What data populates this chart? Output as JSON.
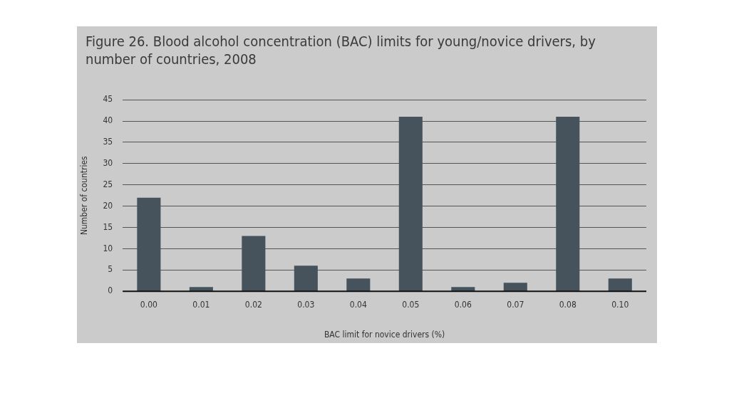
{
  "chart_data": {
    "type": "bar",
    "title": "Figure 26. Blood alcohol concentration (BAC) limits for young/novice drivers, by number of countries, 2008",
    "xlabel": "BAC limit for novice drivers (%)",
    "ylabel": "Number of countries",
    "categories": [
      "0.00",
      "0.01",
      "0.02",
      "0.03",
      "0.04",
      "0.05",
      "0.06",
      "0.07",
      "0.08",
      "0.10"
    ],
    "values": [
      22,
      1,
      13,
      6,
      3,
      41,
      1,
      2,
      41,
      3
    ],
    "color": "#46535d",
    "ylim": [
      0,
      45
    ],
    "yticks": [
      0,
      5,
      10,
      15,
      20,
      25,
      30,
      35,
      40,
      45
    ],
    "grid": "y",
    "legend": false
  }
}
